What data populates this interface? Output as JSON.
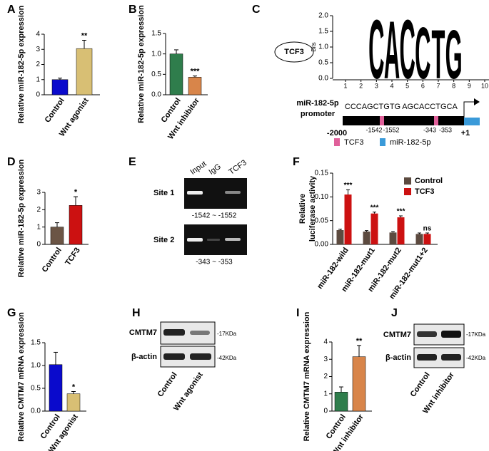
{
  "chart_data": [
    {
      "type": "bar",
      "panel": "A",
      "ylabel": "Relative miR-182-5p expression",
      "categories": [
        "Control",
        "Wnt agonist"
      ],
      "values": [
        1.0,
        3.05
      ],
      "errors": [
        0.1,
        0.55
      ],
      "colors": [
        "#0a0acc",
        "#d8bf74"
      ],
      "significance": [
        null,
        "**"
      ],
      "ylim": [
        0,
        4
      ],
      "yticks": [
        0,
        1,
        2,
        3,
        4
      ]
    },
    {
      "type": "bar",
      "panel": "B",
      "ylabel": "Relative miR-182-5p expression",
      "categories": [
        "Control",
        "Wnt inhibitor"
      ],
      "values": [
        1.0,
        0.43
      ],
      "errors": [
        0.1,
        0.03
      ],
      "colors": [
        "#2f7d4c",
        "#d8854a"
      ],
      "significance": [
        null,
        "***"
      ],
      "ylim": [
        0,
        1.5
      ],
      "yticks": [
        {
          "value": 0,
          "label": "0.0"
        },
        {
          "value": 0.5,
          "label": "0.5"
        },
        {
          "value": 1,
          "label": "1.0"
        },
        {
          "value": 1.5,
          "label": "1.5"
        }
      ]
    },
    {
      "type": "logo",
      "panel": "C",
      "ylabel": "Bits",
      "ylim": [
        0,
        2
      ],
      "yticks": [
        {
          "value": 0,
          "label": "0.0"
        },
        {
          "value": 0.5,
          "label": "0.5"
        },
        {
          "value": 1,
          "label": "1.0"
        },
        {
          "value": 1.5,
          "label": "1.5"
        },
        {
          "value": 2,
          "label": "2.0"
        }
      ],
      "xlim": [
        1,
        10
      ],
      "xticks": [
        1,
        2,
        3,
        4,
        5,
        6,
        7,
        8,
        9,
        10
      ],
      "letters": [
        "C",
        "A",
        "C",
        "C",
        "T",
        "G"
      ],
      "letter_x": [
        3,
        4,
        5,
        6,
        7,
        8
      ],
      "letter_bits": [
        1.95,
        1.9,
        1.95,
        1.7,
        1.6,
        1.6
      ]
    },
    {
      "type": "bar",
      "panel": "D",
      "ylabel": "Relative miR-182-5p expression",
      "categories": [
        "Control",
        "TCF3"
      ],
      "values": [
        1.0,
        2.25
      ],
      "errors": [
        0.25,
        0.5
      ],
      "colors": [
        "#6b5545",
        "#cc1111"
      ],
      "significance": [
        null,
        "*"
      ],
      "ylim": [
        0,
        3
      ],
      "yticks": [
        0,
        1,
        2,
        3
      ]
    },
    {
      "type": "grouped_bar",
      "panel": "F",
      "ylabel": [
        "Relative",
        "luciferase activity"
      ],
      "categories": [
        "miR-182-wild",
        "miR-182-mut1",
        "miR-182-mut2",
        "miR-182-mut1+2"
      ],
      "series": [
        {
          "name": "Control",
          "color": "#5c4a3f",
          "values": [
            0.03,
            0.027,
            0.025,
            0.022
          ],
          "errors": [
            0.002,
            0.002,
            0.002,
            0.002
          ]
        },
        {
          "name": "TCF3",
          "color": "#cc1111",
          "values": [
            0.105,
            0.065,
            0.057,
            0.022
          ],
          "errors": [
            0.01,
            0.003,
            0.003,
            0.002
          ]
        }
      ],
      "significance": [
        "***",
        "***",
        "***",
        "ns"
      ],
      "ylim": [
        0,
        0.15
      ],
      "yticks": [
        {
          "value": 0,
          "label": "0.00"
        },
        {
          "value": 0.05,
          "label": "0.05"
        },
        {
          "value": 0.1,
          "label": "0.10"
        },
        {
          "value": 0.15,
          "label": "0.15"
        }
      ]
    },
    {
      "type": "bar",
      "panel": "G",
      "ylabel": "Relative CMTM7 mRNA expression",
      "categories": [
        "Control",
        "Wnt agonist"
      ],
      "values": [
        1.02,
        0.38
      ],
      "errors": [
        0.27,
        0.05
      ],
      "colors": [
        "#0a0acc",
        "#d8bf74"
      ],
      "significance": [
        null,
        "*"
      ],
      "ylim": [
        0,
        1.5
      ],
      "yticks": [
        {
          "value": 0,
          "label": "0.0"
        },
        {
          "value": 0.5,
          "label": "0.5"
        },
        {
          "value": 1,
          "label": "1.0"
        },
        {
          "value": 1.5,
          "label": "1.5"
        }
      ]
    },
    {
      "type": "bar",
      "panel": "I",
      "ylabel": "Relative CMTM7 mRNA expression",
      "categories": [
        "Control",
        "Wnt inhibitor"
      ],
      "values": [
        1.1,
        3.15
      ],
      "errors": [
        0.3,
        0.65
      ],
      "colors": [
        "#2f7d4c",
        "#d8854a"
      ],
      "significance": [
        null,
        "**"
      ],
      "ylim": [
        0,
        4
      ],
      "yticks": [
        0,
        1,
        2,
        3,
        4
      ]
    }
  ],
  "panel_c": {
    "factor": "TCF3",
    "promoter": [
      "miR-182-5p",
      "promoter"
    ],
    "site1_seq": "CCCAGCTGTG",
    "site2_seq": "AGCACCTGCA",
    "start": "-2000",
    "site1": [
      "-1542",
      "-1552"
    ],
    "site2": [
      "-343",
      "-353"
    ],
    "tss": "+1",
    "legend": [
      "TCF3",
      "miR-182-5p"
    ]
  },
  "panel_e": {
    "panel": "E",
    "lanes": [
      "Input",
      "IgG",
      "TCF3"
    ],
    "rows": [
      "Site 1",
      "Site 2"
    ],
    "ranges": [
      "-1542 ~ -1552",
      "-343 ~ -353"
    ]
  },
  "panel_h": {
    "panel": "H",
    "rows": [
      "CMTM7",
      "β-actin"
    ],
    "sizes": [
      "-17KDa",
      "-42KDa"
    ],
    "lanes": [
      "Control",
      "Wnt agonist"
    ]
  },
  "panel_j": {
    "panel": "J",
    "rows": [
      "CMTM7",
      "β-actin"
    ],
    "sizes": [
      "-17KDa",
      "-42KDa"
    ],
    "lanes": [
      "Control",
      "Wnt inhibitor"
    ]
  }
}
